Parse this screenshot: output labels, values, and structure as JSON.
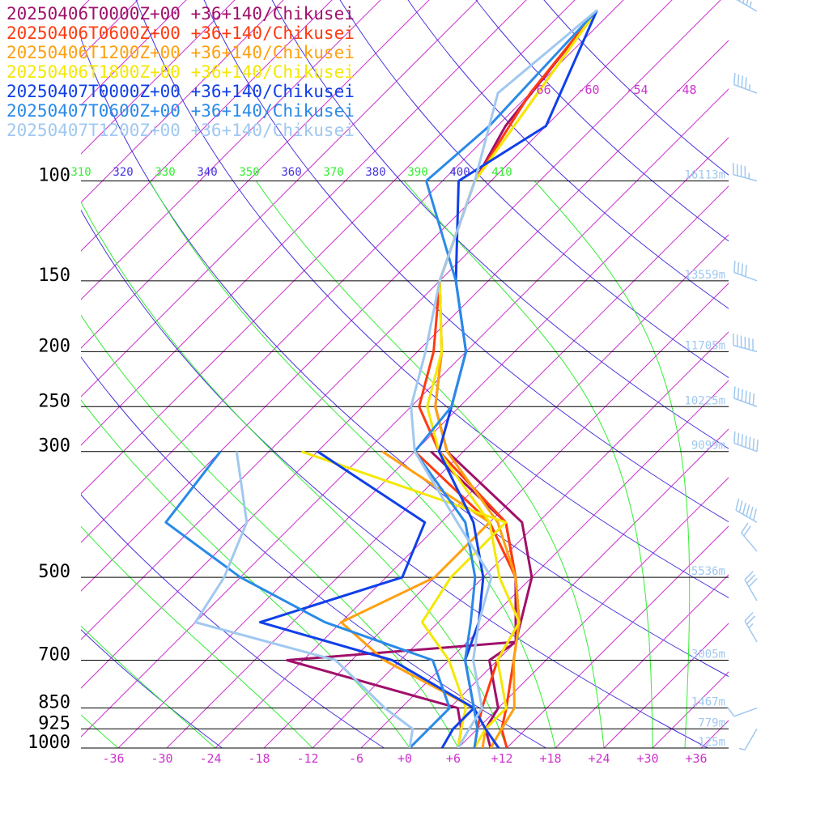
{
  "legend": [
    {
      "label": "20250406T0000Z+00 +36+140/Chikusei",
      "color": "#a0106a"
    },
    {
      "label": "20250406T0600Z+00 +36+140/Chikusei",
      "color": "#ff3a10"
    },
    {
      "label": "20250406T1200Z+00 +36+140/Chikusei",
      "color": "#ffa010"
    },
    {
      "label": "20250406T1800Z+00 +36+140/Chikusei",
      "color": "#f4e800"
    },
    {
      "label": "20250407T0000Z+00 +36+140/Chikusei",
      "color": "#1040e8"
    },
    {
      "label": "20250407T0600Z+00 +36+140/Chikusei",
      "color": "#2a8ae8"
    },
    {
      "label": "20250407T1200Z+00 +36+140/Chikusei",
      "color": "#a0c8f0"
    }
  ],
  "chart_data": {
    "type": "line",
    "subtype": "skew-T log-p sounding",
    "x_axis": {
      "label": "",
      "ticks": [
        "-36",
        "-30",
        "-24",
        "-18",
        "-12",
        "-6",
        "+0",
        "+6",
        "+12",
        "+18",
        "+24",
        "+30",
        "+36"
      ],
      "range": [
        -40,
        40
      ]
    },
    "y_axis": {
      "label": "",
      "scale": "log",
      "ticks": [
        100,
        150,
        200,
        250,
        300,
        500,
        700,
        850,
        925,
        1000
      ],
      "range": [
        100,
        1000
      ]
    },
    "heights": [
      {
        "p": 100,
        "label": "16113m"
      },
      {
        "p": 150,
        "label": "13559m"
      },
      {
        "p": 200,
        "label": "11705m"
      },
      {
        "p": 250,
        "label": "10225m"
      },
      {
        "p": 300,
        "label": "9099m"
      },
      {
        "p": 500,
        "label": "5536m"
      },
      {
        "p": 700,
        "label": "3005m"
      },
      {
        "p": 850,
        "label": "1467m"
      },
      {
        "p": 925,
        "label": "779m"
      },
      {
        "p": 1000,
        "label": "125m"
      }
    ],
    "theta_e_labels": [
      "310",
      "320",
      "330",
      "340",
      "350",
      "360",
      "370",
      "380",
      "390",
      "400",
      "410"
    ],
    "upper_temp_labels": [
      "-66",
      "-60",
      "-54",
      "-48"
    ],
    "colors": {
      "isotherm": "#cc33cc",
      "dry_adiabat": "#4433dd",
      "moist_adiabat": "#33ee33",
      "isobar": "#000000",
      "height_label": "#a0c8f0",
      "wind_barb": "#a0c8f0"
    },
    "series": [
      {
        "name": "20250406T0000Z+00 +36+140/Chikusei",
        "color": "#a0106a",
        "temp": [
          [
            1000,
            10
          ],
          [
            925,
            7
          ],
          [
            850,
            6
          ],
          [
            700,
            -1
          ],
          [
            650,
            0
          ],
          [
            500,
            -6
          ],
          [
            400,
            -14
          ],
          [
            300,
            -32
          ],
          [
            250,
            -39
          ],
          [
            200,
            -45
          ],
          [
            150,
            -54
          ],
          [
            100,
            -62
          ],
          [
            80,
            -65
          ],
          [
            50,
            -68
          ]
        ],
        "dew": [
          [
            1000,
            6
          ],
          [
            925,
            4
          ],
          [
            850,
            1
          ],
          [
            700,
            -26
          ],
          [
            650,
            0
          ],
          [
            500,
            -8
          ],
          [
            400,
            -16
          ],
          [
            300,
            -34
          ]
        ]
      },
      {
        "name": "20250406T0600Z+00 +36+140/Chikusei",
        "color": "#ff3a10",
        "temp": [
          [
            1000,
            12
          ],
          [
            925,
            9
          ],
          [
            850,
            7
          ],
          [
            700,
            2
          ],
          [
            600,
            -2
          ],
          [
            500,
            -8
          ],
          [
            400,
            -16
          ],
          [
            300,
            -33
          ],
          [
            250,
            -41
          ],
          [
            200,
            -46
          ],
          [
            150,
            -54
          ],
          [
            100,
            -62
          ],
          [
            70,
            -66
          ],
          [
            50,
            -68
          ]
        ],
        "dew": [
          [
            1000,
            8
          ],
          [
            925,
            6
          ],
          [
            850,
            4
          ],
          [
            700,
            0
          ],
          [
            600,
            -2
          ],
          [
            500,
            -8
          ],
          [
            400,
            -18
          ],
          [
            300,
            -36
          ]
        ]
      },
      {
        "name": "20250406T1200Z+00 +36+140/Chikusei",
        "color": "#ffa010",
        "temp": [
          [
            1000,
            10
          ],
          [
            925,
            9
          ],
          [
            850,
            8
          ],
          [
            700,
            2
          ],
          [
            600,
            -2
          ],
          [
            500,
            -8
          ],
          [
            400,
            -17
          ],
          [
            300,
            -32
          ],
          [
            250,
            -39
          ],
          [
            200,
            -45
          ],
          [
            150,
            -54
          ],
          [
            100,
            -62
          ],
          [
            50,
            -68
          ]
        ],
        "dew": [
          [
            1000,
            9
          ],
          [
            925,
            7
          ],
          [
            850,
            3
          ],
          [
            700,
            -14
          ],
          [
            600,
            -24
          ],
          [
            500,
            -18
          ],
          [
            400,
            -18
          ],
          [
            300,
            -40
          ]
        ]
      },
      {
        "name": "20250406T1800Z+00 +36+140/Chikusei",
        "color": "#f4e800",
        "temp": [
          [
            1000,
            8
          ],
          [
            925,
            7
          ],
          [
            850,
            7
          ],
          [
            700,
            0
          ],
          [
            600,
            -2
          ],
          [
            500,
            -10
          ],
          [
            400,
            -18
          ],
          [
            300,
            -33
          ],
          [
            250,
            -40
          ],
          [
            200,
            -45
          ],
          [
            150,
            -54
          ],
          [
            100,
            -62
          ],
          [
            50,
            -68
          ]
        ],
        "dew": [
          [
            1000,
            6
          ],
          [
            925,
            4
          ],
          [
            850,
            2
          ],
          [
            700,
            -6
          ],
          [
            600,
            -14
          ],
          [
            500,
            -16
          ],
          [
            400,
            -16
          ],
          [
            300,
            -50
          ]
        ]
      },
      {
        "name": "20250407T0000Z+00 +36+140/Chikusei",
        "color": "#1040e8",
        "temp": [
          [
            1000,
            11
          ],
          [
            925,
            7
          ],
          [
            850,
            3
          ],
          [
            700,
            -4
          ],
          [
            600,
            -7
          ],
          [
            500,
            -12
          ],
          [
            400,
            -20
          ],
          [
            300,
            -33
          ],
          [
            250,
            -37
          ],
          [
            200,
            -42
          ],
          [
            150,
            -52
          ],
          [
            100,
            -64
          ],
          [
            80,
            -60
          ],
          [
            50,
            -68
          ]
        ],
        "dew": [
          [
            1000,
            4
          ],
          [
            925,
            3
          ],
          [
            850,
            3
          ],
          [
            700,
            -13
          ],
          [
            600,
            -34
          ],
          [
            500,
            -22
          ],
          [
            400,
            -26
          ],
          [
            300,
            -48
          ]
        ]
      },
      {
        "name": "20250407T0600Z+00 +36+140/Chikusei",
        "color": "#2a8ae8",
        "temp": [
          [
            1000,
            8
          ],
          [
            925,
            6
          ],
          [
            850,
            3
          ],
          [
            700,
            -4
          ],
          [
            600,
            -8
          ],
          [
            500,
            -13
          ],
          [
            400,
            -21
          ],
          [
            300,
            -36
          ],
          [
            250,
            -37
          ],
          [
            200,
            -42
          ],
          [
            150,
            -52
          ],
          [
            100,
            -68
          ],
          [
            80,
            -67
          ],
          [
            50,
            -68
          ]
        ],
        "dew": [
          [
            1000,
            0
          ],
          [
            925,
            0
          ],
          [
            850,
            0
          ],
          [
            700,
            -8
          ],
          [
            600,
            -26
          ],
          [
            500,
            -42
          ],
          [
            400,
            -58
          ],
          [
            300,
            -60
          ]
        ]
      },
      {
        "name": "20250407T1200Z+00 +36+140/Chikusei",
        "color": "#a0c8f0",
        "temp": [
          [
            1000,
            6
          ],
          [
            925,
            5
          ],
          [
            850,
            4
          ],
          [
            700,
            -3
          ],
          [
            600,
            -7
          ],
          [
            500,
            -11
          ],
          [
            400,
            -22
          ],
          [
            300,
            -36
          ],
          [
            250,
            -42
          ],
          [
            200,
            -47
          ],
          [
            150,
            -54
          ],
          [
            100,
            -62
          ],
          [
            70,
            -70
          ],
          [
            50,
            -68
          ]
        ],
        "dew": [
          [
            1000,
            0
          ],
          [
            925,
            -2
          ],
          [
            850,
            -8
          ],
          [
            700,
            -20
          ],
          [
            600,
            -42
          ],
          [
            500,
            -44
          ],
          [
            400,
            -48
          ],
          [
            300,
            -58
          ]
        ]
      }
    ],
    "wind_barbs": [
      {
        "p": 50,
        "speed_kt": 45,
        "dir_deg": 300
      },
      {
        "p": 70,
        "speed_kt": 45,
        "dir_deg": 290
      },
      {
        "p": 100,
        "speed_kt": 45,
        "dir_deg": 285
      },
      {
        "p": 150,
        "speed_kt": 40,
        "dir_deg": 290
      },
      {
        "p": 200,
        "speed_kt": 60,
        "dir_deg": 285
      },
      {
        "p": 250,
        "speed_kt": 60,
        "dir_deg": 290
      },
      {
        "p": 300,
        "speed_kt": 70,
        "dir_deg": 290
      },
      {
        "p": 400,
        "speed_kt": 60,
        "dir_deg": 300
      },
      {
        "p": 450,
        "speed_kt": 20,
        "dir_deg": 320
      },
      {
        "p": 550,
        "speed_kt": 30,
        "dir_deg": 330
      },
      {
        "p": 650,
        "speed_kt": 25,
        "dir_deg": 330
      },
      {
        "p": 850,
        "speed_kt": 10,
        "dir_deg": 250
      },
      {
        "p": 925,
        "speed_kt": 5,
        "dir_deg": 210
      }
    ]
  }
}
